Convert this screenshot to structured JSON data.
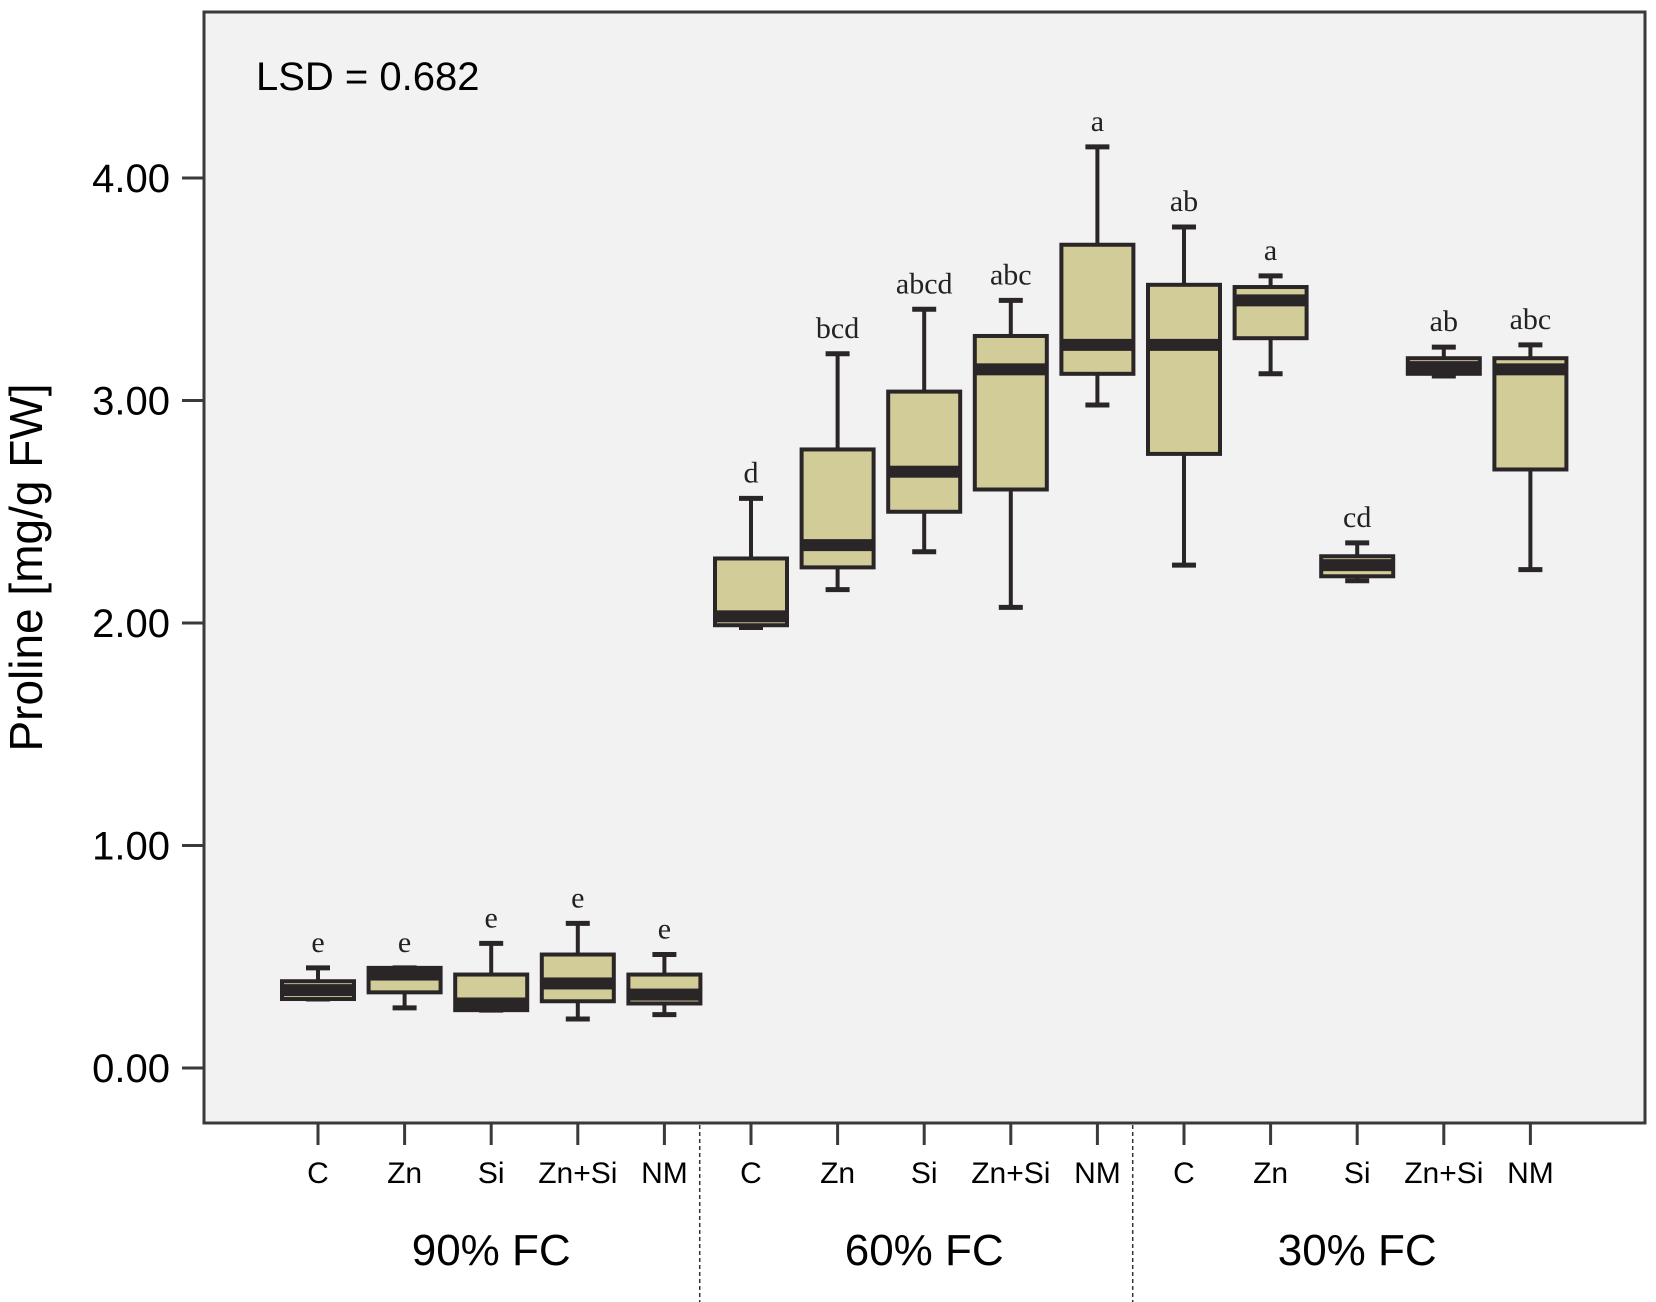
{
  "chart_data": {
    "type": "boxplot",
    "title": "",
    "ylabel": "Proline [mg/g FW]",
    "xlabel": "",
    "ylim": [
      -0.25,
      4.8
    ],
    "yticks": [
      0.0,
      1.0,
      2.0,
      3.0,
      4.0
    ],
    "ytick_labels": [
      "0.00",
      "1.00",
      "2.00",
      "3.00",
      "4.00"
    ],
    "grid": false,
    "annotation": "LSD = 0.682",
    "colors": {
      "plot_background": "#f2f2f2",
      "box_fill": "#d2cd98",
      "box_line": "#2a2527"
    },
    "groups": [
      {
        "name": "90% FC",
        "boxes": [
          {
            "category": "C",
            "letter": "e",
            "min": 0.31,
            "q1": 0.31,
            "median": 0.35,
            "q3": 0.39,
            "max": 0.45
          },
          {
            "category": "Zn",
            "letter": "e",
            "min": 0.27,
            "q1": 0.34,
            "median": 0.42,
            "q3": 0.45,
            "max": 0.45
          },
          {
            "category": "Si",
            "letter": "e",
            "min": 0.26,
            "q1": 0.26,
            "median": 0.29,
            "q3": 0.42,
            "max": 0.56
          },
          {
            "category": "Zn+Si",
            "letter": "e",
            "min": 0.22,
            "q1": 0.3,
            "median": 0.38,
            "q3": 0.51,
            "max": 0.65
          },
          {
            "category": "NM",
            "letter": "e",
            "min": 0.24,
            "q1": 0.29,
            "median": 0.33,
            "q3": 0.42,
            "max": 0.51
          }
        ]
      },
      {
        "name": "60% FC",
        "boxes": [
          {
            "category": "C",
            "letter": "d",
            "min": 1.98,
            "q1": 1.99,
            "median": 2.03,
            "q3": 2.29,
            "max": 2.56
          },
          {
            "category": "Zn",
            "letter": "bcd",
            "min": 2.15,
            "q1": 2.25,
            "median": 2.35,
            "q3": 2.78,
            "max": 3.21
          },
          {
            "category": "Si",
            "letter": "abcd",
            "min": 2.32,
            "q1": 2.5,
            "median": 2.68,
            "q3": 3.04,
            "max": 3.41
          },
          {
            "category": "Zn+Si",
            "letter": "abc",
            "min": 2.07,
            "q1": 2.6,
            "median": 3.14,
            "q3": 3.29,
            "max": 3.45
          },
          {
            "category": "NM",
            "letter": "a",
            "min": 2.98,
            "q1": 3.12,
            "median": 3.25,
            "q3": 3.7,
            "max": 4.14
          }
        ]
      },
      {
        "name": "30% FC",
        "boxes": [
          {
            "category": "C",
            "letter": "ab",
            "min": 2.26,
            "q1": 2.76,
            "median": 3.25,
            "q3": 3.52,
            "max": 3.78
          },
          {
            "category": "Zn",
            "letter": "a",
            "min": 3.12,
            "q1": 3.28,
            "median": 3.45,
            "q3": 3.51,
            "max": 3.56
          },
          {
            "category": "Si",
            "letter": "cd",
            "min": 2.19,
            "q1": 2.21,
            "median": 2.26,
            "q3": 2.3,
            "max": 2.36
          },
          {
            "category": "Zn+Si",
            "letter": "ab",
            "min": 3.11,
            "q1": 3.12,
            "median": 3.15,
            "q3": 3.19,
            "max": 3.24
          },
          {
            "category": "NM",
            "letter": "abc",
            "min": 2.24,
            "q1": 2.69,
            "median": 3.14,
            "q3": 3.19,
            "max": 3.25
          }
        ]
      }
    ]
  }
}
